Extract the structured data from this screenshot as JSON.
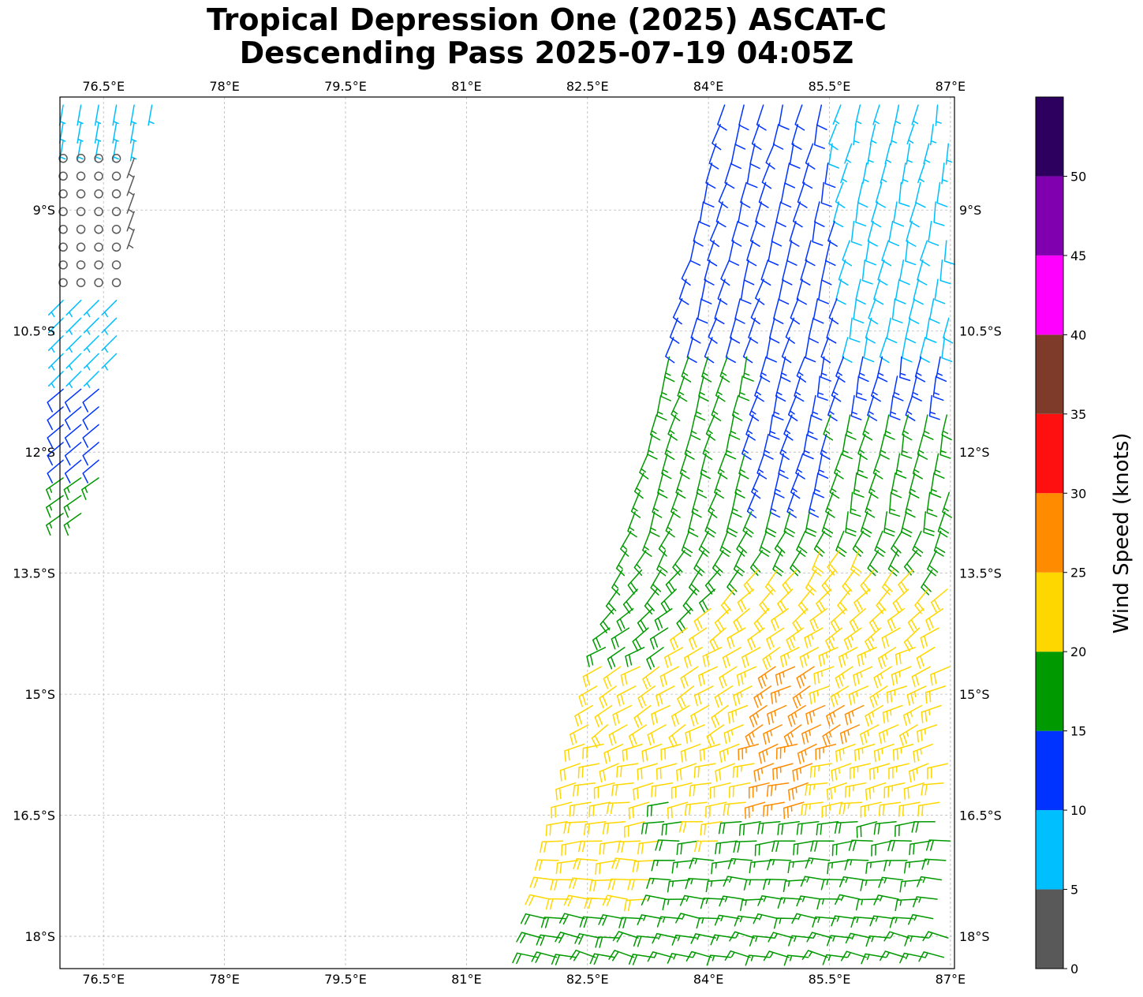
{
  "chart_data": {
    "type": "wind-barb map",
    "title_line1": "Tropical Depression One (2025) ASCAT-C",
    "title_line2": "Descending Pass 2025-07-19 04:05Z",
    "x_ticks": [
      "76.5°E",
      "78°E",
      "79.5°E",
      "81°E",
      "82.5°E",
      "84°E",
      "85.5°E",
      "87°E"
    ],
    "x_tick_values": [
      76.5,
      78,
      79.5,
      81,
      82.5,
      84,
      85.5,
      87
    ],
    "y_ticks": [
      "9°S",
      "10.5°S",
      "12°S",
      "13.5°S",
      "15°S",
      "16.5°S",
      "18°S"
    ],
    "y_tick_values": [
      -9,
      -10.5,
      -12,
      -13.5,
      -15,
      -16.5,
      -18
    ],
    "lon_range": [
      75.96,
      87.05
    ],
    "lat_range": [
      -18.4,
      -7.6
    ],
    "grid": true,
    "colorbar": {
      "label": "Wind Speed (knots)",
      "bounds": [
        0,
        5,
        10,
        15,
        20,
        25,
        30,
        35,
        40,
        45,
        50,
        55
      ],
      "colors": [
        "#595959",
        "#00bfff",
        "#0033ff",
        "#009900",
        "#ffd700",
        "#ff8c00",
        "#ff1010",
        "#7f3b29",
        "#ff00ff",
        "#8000b0",
        "#2d0060"
      ],
      "tick_labels": [
        "0",
        "5",
        "10",
        "15",
        "20",
        "25",
        "30",
        "35",
        "40",
        "45",
        "50"
      ]
    },
    "swaths": [
      {
        "name": "west swath",
        "lon_range": [
          75.96,
          77.3
        ],
        "lat_range": [
          -12.8,
          -7.6
        ]
      },
      {
        "name": "east swath",
        "lon_range": [
          82.0,
          87.05
        ],
        "lat_range": [
          -18.4,
          -7.6
        ]
      }
    ]
  }
}
